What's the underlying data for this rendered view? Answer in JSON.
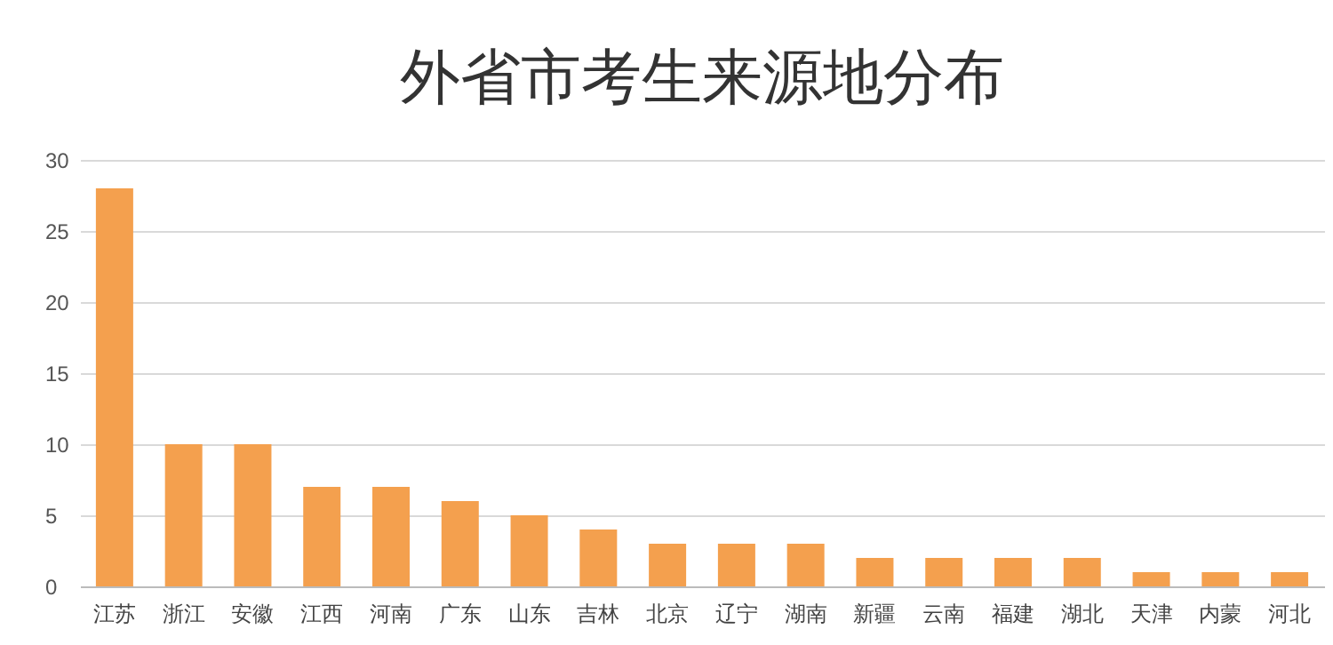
{
  "chart_data": {
    "type": "bar",
    "title": "外省市考生来源地分布",
    "categories": [
      "江苏",
      "浙江",
      "安徽",
      "江西",
      "河南",
      "广东",
      "山东",
      "吉林",
      "北京",
      "辽宁",
      "湖南",
      "新疆",
      "云南",
      "福建",
      "湖北",
      "天津",
      "内蒙",
      "河北"
    ],
    "values": [
      28,
      10,
      10,
      7,
      7,
      6,
      5,
      4,
      3,
      3,
      3,
      2,
      2,
      2,
      2,
      1,
      1,
      1
    ],
    "color": "#f4a04e",
    "ylim": [
      0,
      30
    ],
    "yticks": [
      0,
      5,
      10,
      15,
      20,
      25,
      30
    ],
    "grid": "y"
  }
}
